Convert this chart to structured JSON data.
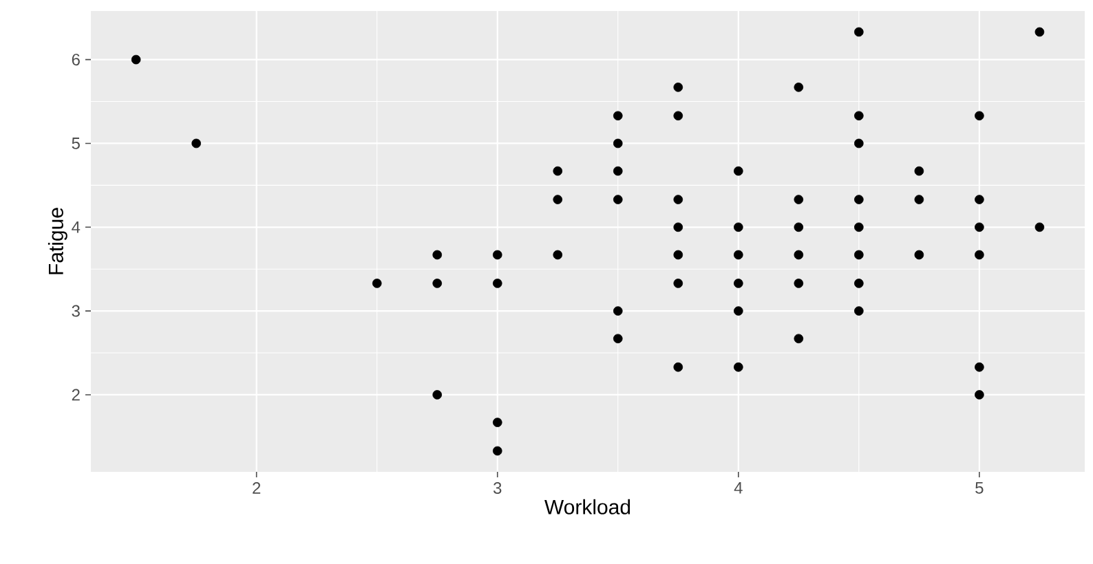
{
  "chart_data": {
    "type": "scatter",
    "xlabel": "Workload",
    "ylabel": "Fatigue",
    "x": [
      1.5,
      1.75,
      3.25,
      3.25,
      2.75,
      3,
      3.25,
      2.5,
      2.75,
      3,
      2.75,
      3,
      3,
      4.5,
      5.25,
      3.75,
      4.25,
      3.5,
      3.75,
      4.5,
      5,
      3.5,
      4.5,
      3.5,
      4,
      4.75,
      3.5,
      3.75,
      4.25,
      4.5,
      4.75,
      5,
      3.75,
      4,
      4.25,
      4.5,
      5,
      5.25,
      3.75,
      4,
      4.25,
      4.5,
      4.75,
      5,
      3.75,
      4,
      4.25,
      4.5,
      3.5,
      4,
      4.5,
      3.5,
      4.25,
      3.75,
      4,
      5,
      5
    ],
    "values": [
      6,
      5,
      4.67,
      4.33,
      3.67,
      3.67,
      3.67,
      3.33,
      3.33,
      3.33,
      2,
      1.67,
      1.33,
      6.33,
      6.33,
      5.67,
      5.67,
      5.33,
      5.33,
      5.33,
      5.33,
      5,
      5,
      4.67,
      4.67,
      4.67,
      4.33,
      4.33,
      4.33,
      4.33,
      4.33,
      4.33,
      4,
      4,
      4,
      4,
      4,
      4,
      3.67,
      3.67,
      3.67,
      3.67,
      3.67,
      3.67,
      3.33,
      3.33,
      3.33,
      3.33,
      3,
      3,
      3,
      2.67,
      2.67,
      2.33,
      2.33,
      2.33,
      2
    ],
    "color": "#000000",
    "grid": true,
    "xlim": [
      1.3125,
      5.4375
    ],
    "ylim": [
      1.08,
      6.58
    ],
    "xticks": [
      2,
      3,
      4,
      5
    ],
    "yticks": [
      2,
      3,
      4,
      5,
      6
    ]
  }
}
